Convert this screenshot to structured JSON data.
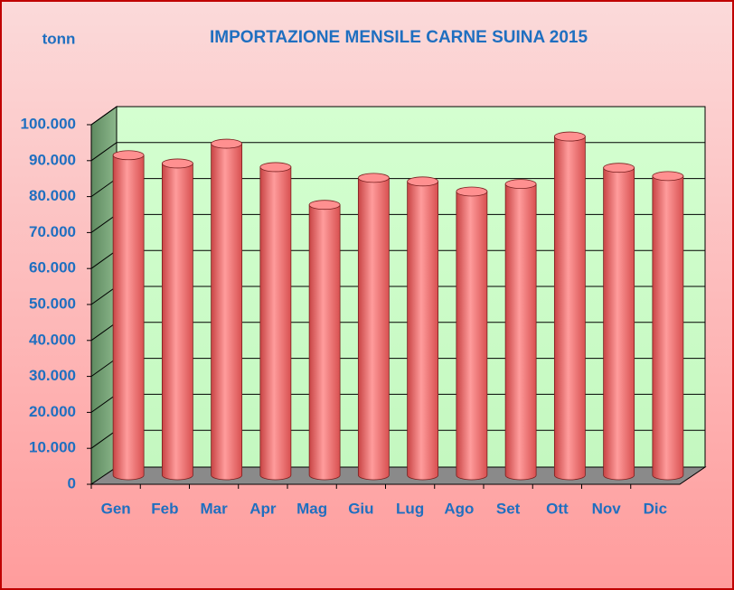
{
  "chart_data": {
    "type": "bar",
    "title": "IMPORTAZIONE MENSILE CARNE SUINA 2015",
    "y_label": "tonn",
    "categories": [
      "Gen",
      "Feb",
      "Mar",
      "Apr",
      "Mag",
      "Giu",
      "Lug",
      "Ago",
      "Set",
      "Ott",
      "Nov",
      "Dic"
    ],
    "values": [
      89000,
      86700,
      92200,
      85700,
      75200,
      82700,
      81700,
      78900,
      81000,
      94200,
      85500,
      83200
    ],
    "color": "#ff7a7a",
    "ylim": [
      0,
      100000
    ],
    "yticks": [
      0,
      {
        "value": 10000,
        "label": "10.000"
      },
      {
        "value": 20000,
        "label": "20.000"
      },
      {
        "value": 30000,
        "label": "30.000"
      },
      {
        "value": 40000,
        "label": "40.000"
      },
      {
        "value": 50000,
        "label": "50.000"
      },
      {
        "value": 60000,
        "label": "60.000"
      },
      {
        "value": 70000,
        "label": "70.000"
      },
      {
        "value": 80000,
        "label": "80.000"
      },
      {
        "value": 90000,
        "label": "90.000"
      },
      {
        "value": 100000,
        "label": "100.000"
      }
    ],
    "grid": true
  }
}
